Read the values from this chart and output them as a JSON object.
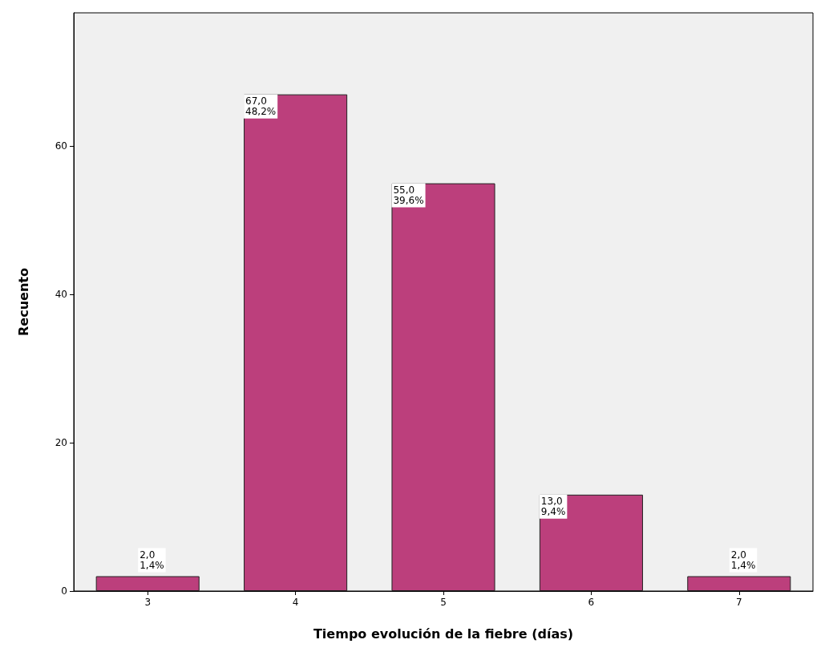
{
  "chart_data": {
    "type": "bar",
    "xlabel": "Tiempo evolución de la fiebre (días)",
    "ylabel": "Recuento",
    "categories": [
      "3",
      "4",
      "5",
      "6",
      "7"
    ],
    "values": [
      2,
      67,
      55,
      13,
      2
    ],
    "value_labels": [
      "2,0\n1,4%",
      "67,0\n48,2%",
      "55,0\n39,6%",
      "13,0\n9,4%",
      "2,0\n1,4%"
    ],
    "color": "#bc3f7c",
    "ylim": [
      0,
      78
    ],
    "yticks": [
      0,
      20,
      40,
      60
    ]
  }
}
